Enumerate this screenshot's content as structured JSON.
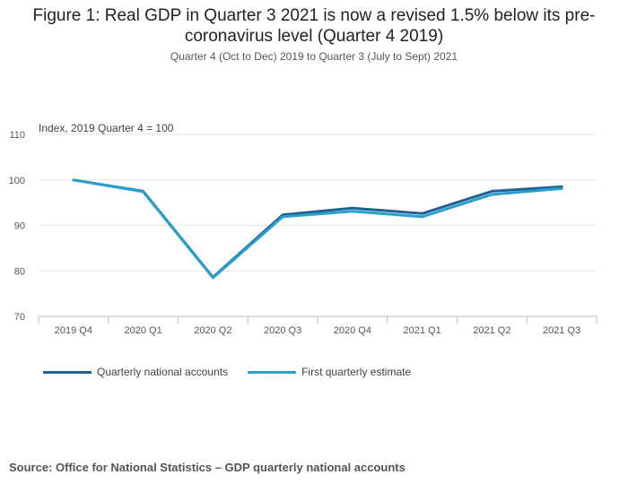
{
  "chart_data": {
    "type": "line",
    "title": "Figure 1: Real GDP in Quarter 3 2021 is now a revised 1.5% below its pre-coronavirus level (Quarter 4 2019)",
    "subtitle": "Quarter 4 (Oct to Dec) 2019 to Quarter 3 (July to Sept) 2021",
    "ylabel": "Index, 2019 Quarter 4 = 100",
    "xlabel": "",
    "ylim": [
      70,
      110
    ],
    "yticks": [
      "70",
      "80",
      "90",
      "100",
      "110"
    ],
    "categories": [
      "2019 Q4",
      "2020 Q1",
      "2020 Q2",
      "2020 Q3",
      "2020 Q4",
      "2021 Q1",
      "2021 Q2",
      "2021 Q3"
    ],
    "series": [
      {
        "name": "Quarterly national accounts",
        "color": "#206095",
        "values": [
          100.0,
          97.5,
          78.6,
          92.3,
          93.8,
          92.6,
          97.5,
          98.5
        ]
      },
      {
        "name": "First quarterly estimate",
        "color": "#27a0cc",
        "values": [
          100.0,
          97.4,
          78.5,
          91.9,
          93.1,
          91.9,
          96.8,
          98.1
        ]
      }
    ],
    "legend": "bottom-left",
    "grid": true
  },
  "source": "Source: Office for National Statistics – GDP quarterly national accounts"
}
